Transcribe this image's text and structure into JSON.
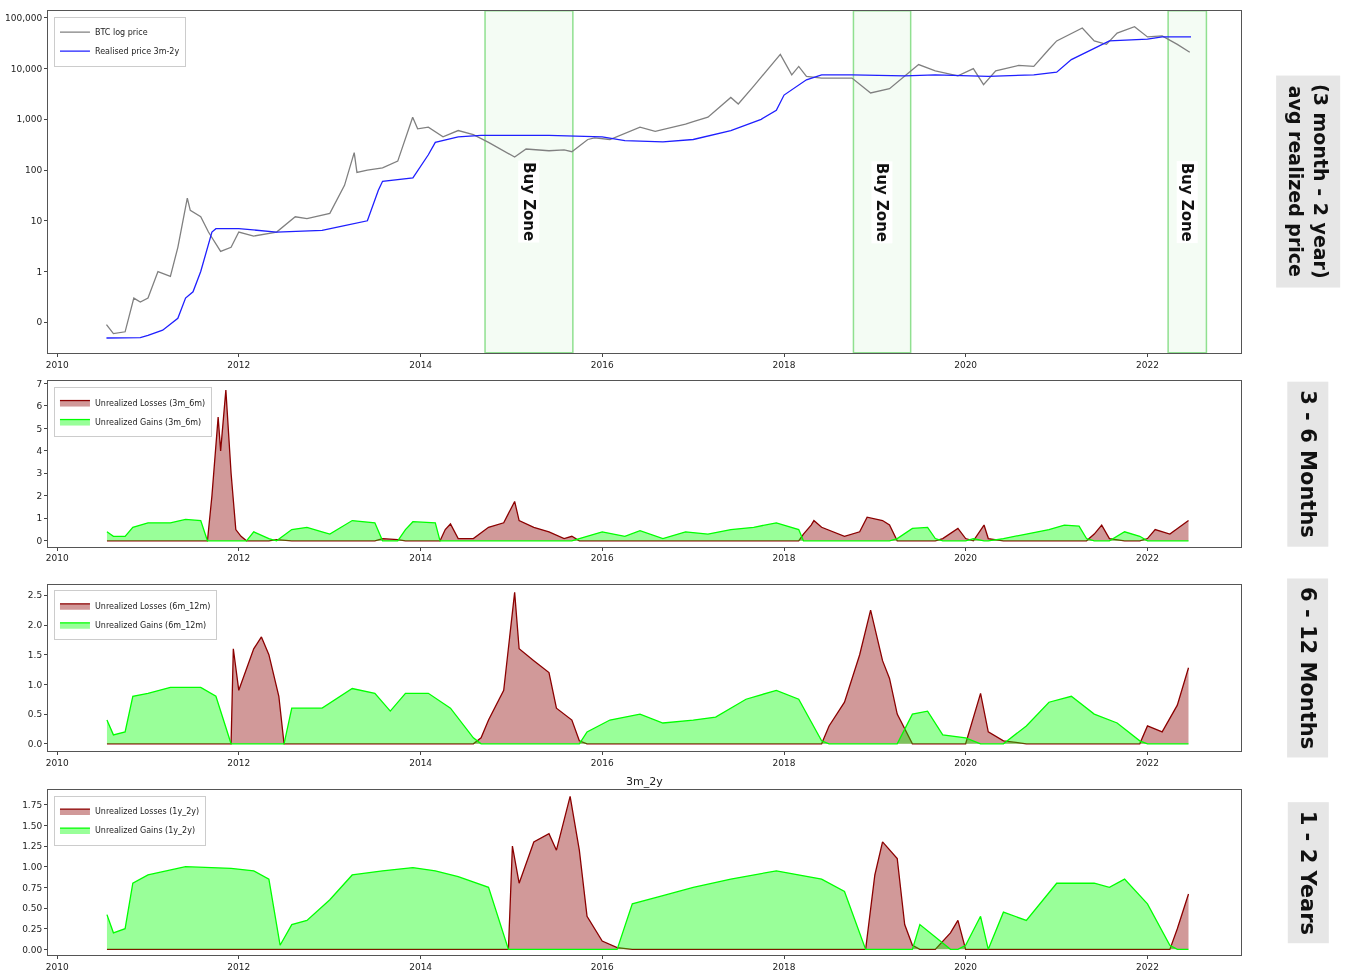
{
  "chart_data": [
    {
      "type": "line",
      "log": true,
      "legend": "top left",
      "xlim": [
        "2009-11-25",
        "2023-01-12"
      ],
      "xticks": [
        "2010",
        "2012",
        "2014",
        "2016",
        "2018",
        "2020",
        "2022"
      ],
      "ylim": [
        0.025,
        137000
      ],
      "yticks": [
        {
          "value": 0.1,
          "label": "0"
        },
        1,
        10,
        100,
        {
          "value": 1000,
          "label": "1,000"
        },
        {
          "value": 10000,
          "label": "10,000"
        },
        {
          "value": 100000,
          "label": "100,000"
        }
      ],
      "series": [
        {
          "name": "BTC log price",
          "color": "#808080",
          "x": [
            "2010-07-18",
            "2010-08-15",
            "2010-10-01",
            "2010-11-05",
            "2010-12-01",
            "2011-01-01",
            "2011-02-10",
            "2011-04-01",
            "2011-05-01",
            "2011-06-08",
            "2011-06-20",
            "2011-08-01",
            "2011-09-01",
            "2011-10-20",
            "2011-12-01",
            "2012-01-01",
            "2012-03-01",
            "2012-06-01",
            "2012-08-15",
            "2012-10-01",
            "2013-01-01",
            "2013-03-01",
            "2013-04-09",
            "2013-04-20",
            "2013-06-01",
            "2013-08-01",
            "2013-10-01",
            "2013-11-30",
            "2013-12-20",
            "2014-02-01",
            "2014-04-01",
            "2014-06-01",
            "2014-08-01",
            "2014-10-01",
            "2015-01-14",
            "2015-03-01",
            "2015-06-01",
            "2015-08-01",
            "2015-09-01",
            "2015-11-04",
            "2015-12-01",
            "2016-02-01",
            "2016-06-01",
            "2016-08-01",
            "2016-12-01",
            "2017-01-01",
            "2017-03-01",
            "2017-06-01",
            "2017-07-01",
            "2017-09-01",
            "2017-12-17",
            "2018-02-01",
            "2018-03-01",
            "2018-04-01",
            "2018-06-01",
            "2018-08-01",
            "2018-10-01",
            "2018-12-15",
            "2019-03-01",
            "2019-06-26",
            "2019-09-01",
            "2019-12-01",
            "2020-02-01",
            "2020-03-13",
            "2020-05-01",
            "2020-08-01",
            "2020-10-01",
            "2020-12-01",
            "2021-01-01",
            "2021-04-14",
            "2021-06-01",
            "2021-07-20",
            "2021-09-01",
            "2021-11-10",
            "2022-01-01",
            "2022-03-01",
            "2022-05-01",
            "2022-06-20"
          ],
          "values": [
            0.09,
            0.06,
            0.065,
            0.3,
            0.25,
            0.3,
            1.0,
            0.8,
            3,
            28,
            16,
            12,
            6,
            2.5,
            3,
            6,
            5,
            6,
            12,
            11,
            14,
            50,
            220,
            90,
            100,
            110,
            150,
            1100,
            650,
            700,
            450,
            600,
            500,
            350,
            180,
            260,
            240,
            250,
            230,
            400,
            430,
            400,
            700,
            580,
            800,
            900,
            1100,
            2700,
            2000,
            4500,
            19000,
            7500,
            11000,
            7000,
            6500,
            6500,
            6500,
            3300,
            4000,
            12000,
            9000,
            7200,
            10000,
            4800,
            9000,
            11500,
            11000,
            24000,
            35000,
            63000,
            35000,
            30000,
            50000,
            67000,
            42000,
            44000,
            30000,
            21000
          ]
        },
        {
          "name": "Realised price 3m-2y",
          "color": "#1f1fff",
          "x": [
            "2010-07-18",
            "2010-12-01",
            "2011-01-01",
            "2011-03-01",
            "2011-05-01",
            "2011-06-01",
            "2011-07-01",
            "2011-08-01",
            "2011-09-15",
            "2011-10-01",
            "2012-01-01",
            "2012-06-01",
            "2012-12-01",
            "2013-03-01",
            "2013-06-01",
            "2013-07-15",
            "2013-08-01",
            "2013-12-01",
            "2014-02-01",
            "2014-03-01",
            "2014-06-01",
            "2014-09-01",
            "2015-06-01",
            "2016-01-01",
            "2016-04-01",
            "2016-09-01",
            "2017-01-01",
            "2017-06-01",
            "2017-10-01",
            "2017-12-01",
            "2018-01-01",
            "2018-04-01",
            "2018-06-01",
            "2018-10-01",
            "2019-05-01",
            "2019-09-01",
            "2020-04-01",
            "2020-10-01",
            "2021-01-01",
            "2021-03-01",
            "2021-06-01",
            "2021-08-01",
            "2022-01-01",
            "2022-03-01",
            "2022-06-25"
          ],
          "values": [
            0.049,
            0.05,
            0.055,
            0.07,
            0.12,
            0.3,
            0.4,
            1,
            6,
            7,
            7,
            6,
            6.5,
            8,
            10,
            40,
            60,
            70,
            200,
            350,
            450,
            480,
            480,
            450,
            380,
            360,
            400,
            600,
            1000,
            1500,
            3000,
            6000,
            7500,
            7500,
            7200,
            7500,
            7000,
            7500,
            8500,
            15000,
            25000,
            35000,
            38000,
            42000,
            42000
          ]
        }
      ],
      "bands": [
        {
          "axis": "x",
          "from": "2014-09-17",
          "to": "2015-09-05",
          "label": "Buy Zone",
          "color": "#90e090"
        },
        {
          "axis": "x",
          "from": "2018-10-07",
          "to": "2019-05-25",
          "label": "Buy Zone",
          "color": "#90e090"
        },
        {
          "axis": "x",
          "from": "2022-03-25",
          "to": "2022-08-26",
          "label": "Buy Zone",
          "color": "#90e090"
        }
      ],
      "annotations": [
        "(3 month - 2 year)\navg realized price"
      ]
    },
    {
      "type": "area",
      "legend": "top left",
      "xlim": [
        "2009-11-25",
        "2023-01-12"
      ],
      "xticks": [
        "2010",
        "2012",
        "2014",
        "2016",
        "2018",
        "2020",
        "2022"
      ],
      "ylim": [
        -0.26,
        7.09
      ],
      "yticks": [
        0,
        1,
        2,
        3,
        4,
        5,
        6,
        7
      ],
      "x": [
        "2010-07-20",
        "2010-08-15",
        "2010-10-01",
        "2010-11-01",
        "2011-01-01",
        "2011-04-01",
        "2011-06-01",
        "2011-08-01",
        "2011-08-28",
        "2011-09-15",
        "2011-10-10",
        "2011-10-20",
        "2011-11-10",
        "2011-12-01",
        "2011-12-20",
        "2012-01-10",
        "2012-02-01",
        "2012-03-01",
        "2012-05-01",
        "2012-06-01",
        "2012-08-01",
        "2012-10-01",
        "2012-12-01",
        "2013-01-01",
        "2013-04-01",
        "2013-07-01",
        "2013-08-01",
        "2013-10-01",
        "2013-11-01",
        "2013-12-01",
        "2014-03-01",
        "2014-03-20",
        "2014-04-10",
        "2014-05-01",
        "2014-06-01",
        "2014-08-01",
        "2014-10-01",
        "2014-12-01",
        "2015-01-14",
        "2015-02-01",
        "2015-04-01",
        "2015-06-01",
        "2015-08-01",
        "2015-09-01",
        "2015-10-01",
        "2016-01-01",
        "2016-04-01",
        "2016-06-01",
        "2016-09-01",
        "2016-12-01",
        "2017-03-01",
        "2017-06-01",
        "2017-09-01",
        "2017-12-01",
        "2018-03-01",
        "2018-03-20",
        "2018-04-20",
        "2018-05-01",
        "2018-06-01",
        "2018-09-01",
        "2018-11-01",
        "2018-12-01",
        "2019-02-01",
        "2019-03-01",
        "2019-04-01",
        "2019-06-01",
        "2019-08-01",
        "2019-09-01",
        "2019-10-01",
        "2019-12-01",
        "2020-01-01",
        "2020-02-01",
        "2020-03-15",
        "2020-04-01",
        "2020-06-01",
        "2020-09-01",
        "2020-12-01",
        "2021-02-01",
        "2021-04-01",
        "2021-05-01",
        "2021-06-01",
        "2021-07-01",
        "2021-08-01",
        "2021-10-01",
        "2021-12-01",
        "2022-01-01",
        "2022-02-01",
        "2022-04-01",
        "2022-06-15"
      ],
      "series": [
        {
          "name": "Unrealized Losses (3m_6m)",
          "color": "#8b0000",
          "values": [
            0,
            0,
            0,
            0,
            0,
            0,
            0,
            0,
            0,
            2,
            5.5,
            4,
            6.7,
            3,
            0.5,
            0.2,
            0,
            0,
            0,
            0.05,
            0,
            0,
            0,
            0,
            0,
            0,
            0.1,
            0.05,
            0,
            0,
            0,
            0,
            0.5,
            0.75,
            0.1,
            0.1,
            0.6,
            0.8,
            1.75,
            0.9,
            0.6,
            0.4,
            0.1,
            0.2,
            0,
            0,
            0,
            0,
            0,
            0,
            0,
            0,
            0,
            0,
            0,
            0.3,
            0.7,
            0.9,
            0.6,
            0.2,
            0.4,
            1.05,
            0.9,
            0.7,
            0,
            0,
            0,
            0,
            0.1,
            0.55,
            0.1,
            0,
            0.7,
            0.1,
            0,
            0,
            0,
            0,
            0,
            0,
            0.3,
            0.7,
            0.1,
            0,
            0,
            0.1,
            0.5,
            0.3,
            0.9
          ]
        },
        {
          "name": "Unrealized Gains (3m_6m)",
          "color": "#00ff00",
          "values": [
            0.4,
            0.2,
            0.2,
            0.6,
            0.8,
            0.8,
            0.95,
            0.9,
            0,
            0,
            0,
            0,
            0,
            0,
            0,
            0,
            0,
            0.4,
            0.1,
            0,
            0.5,
            0.6,
            0.4,
            0.3,
            0.9,
            0.8,
            0,
            0,
            0.5,
            0.85,
            0.8,
            0,
            0,
            0,
            0,
            0,
            0,
            0,
            0,
            0,
            0,
            0,
            0,
            0,
            0.1,
            0.4,
            0.2,
            0.45,
            0.1,
            0.4,
            0.3,
            0.5,
            0.6,
            0.8,
            0.5,
            0,
            0,
            0,
            0,
            0,
            0,
            0,
            0,
            0,
            0.1,
            0.55,
            0.6,
            0.1,
            0,
            0,
            0,
            0.1,
            0,
            0,
            0.1,
            0.3,
            0.5,
            0.7,
            0.65,
            0.1,
            0,
            0,
            0,
            0.4,
            0.2,
            0,
            0,
            0,
            0
          ]
        }
      ],
      "annotations": [
        "3 - 6 Months"
      ]
    },
    {
      "type": "area",
      "legend": "top left",
      "xlim": [
        "2009-11-25",
        "2023-01-12"
      ],
      "xticks": [
        "2010",
        "2012",
        "2014",
        "2016",
        "2018",
        "2020",
        "2022"
      ],
      "ylim": [
        -0.12,
        2.68
      ],
      "yticks": [
        {
          "value": 0,
          "label": "0.0"
        },
        0.5,
        {
          "value": 1,
          "label": "1.0"
        },
        1.5,
        {
          "value": 2,
          "label": "2.0"
        },
        2.5
      ],
      "x": [
        "2010-07-20",
        "2010-08-15",
        "2010-10-01",
        "2010-11-01",
        "2011-01-01",
        "2011-04-01",
        "2011-08-01",
        "2011-10-01",
        "2011-12-01",
        "2011-12-10",
        "2012-01-01",
        "2012-03-01",
        "2012-04-01",
        "2012-05-01",
        "2012-06-10",
        "2012-07-01",
        "2012-08-01",
        "2012-10-01",
        "2012-12-01",
        "2013-04-01",
        "2013-07-01",
        "2013-09-01",
        "2013-11-01",
        "2014-02-01",
        "2014-05-01",
        "2014-08-01",
        "2014-09-01",
        "2014-10-01",
        "2014-12-01",
        "2015-01-14",
        "2015-02-01",
        "2015-04-01",
        "2015-06-01",
        "2015-07-01",
        "2015-09-01",
        "2015-10-01",
        "2015-11-01",
        "2016-02-01",
        "2016-06-01",
        "2016-09-01",
        "2017-01-01",
        "2017-04-01",
        "2017-08-01",
        "2017-12-01",
        "2018-03-01",
        "2018-06-01",
        "2018-07-01",
        "2018-09-01",
        "2018-11-01",
        "2018-12-15",
        "2019-02-01",
        "2019-03-01",
        "2019-04-01",
        "2019-06-01",
        "2019-08-01",
        "2019-10-01",
        "2020-01-01",
        "2020-03-01",
        "2020-04-01",
        "2020-06-01",
        "2020-09-01",
        "2020-12-01",
        "2021-03-01",
        "2021-06-01",
        "2021-09-01",
        "2021-12-01",
        "2022-01-01",
        "2022-03-01",
        "2022-05-01",
        "2022-06-15"
      ],
      "series": [
        {
          "name": "Unrealized Losses (6m_12m)",
          "color": "#8b0000",
          "values": [
            0,
            0,
            0,
            0,
            0,
            0,
            0,
            0,
            0,
            1.6,
            0.9,
            1.6,
            1.8,
            1.5,
            0.8,
            0,
            0,
            0,
            0,
            0,
            0,
            0,
            0,
            0,
            0,
            0,
            0.1,
            0.4,
            0.9,
            2.55,
            1.6,
            1.4,
            1.2,
            0.6,
            0.4,
            0.05,
            0,
            0,
            0,
            0,
            0,
            0,
            0,
            0,
            0,
            0,
            0.3,
            0.7,
            1.5,
            2.25,
            1.4,
            1.1,
            0.5,
            0,
            0,
            0,
            0,
            0.85,
            0.2,
            0.05,
            0,
            0,
            0,
            0,
            0,
            0,
            0.3,
            0.2,
            0.65,
            1.28
          ]
        },
        {
          "name": "Unrealized Gains (6m_12m)",
          "color": "#00ff00",
          "values": [
            0.4,
            0.15,
            0.2,
            0.8,
            0.85,
            0.95,
            0.95,
            0.8,
            0,
            0,
            0,
            0,
            0,
            0,
            0,
            0,
            0.6,
            0.6,
            0.6,
            0.93,
            0.85,
            0.55,
            0.85,
            0.85,
            0.6,
            0.1,
            0,
            0,
            0,
            0,
            0,
            0,
            0,
            0,
            0,
            0,
            0.2,
            0.4,
            0.5,
            0.35,
            0.4,
            0.45,
            0.75,
            0.9,
            0.75,
            0.05,
            0,
            0,
            0,
            0,
            0,
            0,
            0,
            0.5,
            0.55,
            0.15,
            0.1,
            0,
            0,
            0,
            0.3,
            0.7,
            0.8,
            0.5,
            0.35,
            0.05,
            0,
            0,
            0,
            0
          ]
        }
      ],
      "annotations": [
        "6 - 12 Months"
      ]
    },
    {
      "type": "area",
      "title": "3m_2y",
      "legend": "top left",
      "xlim": [
        "2009-11-25",
        "2023-01-12"
      ],
      "xticks": [
        "2010",
        "2012",
        "2014",
        "2016",
        "2018",
        "2020",
        "2022"
      ],
      "ylim": [
        -0.07,
        1.93
      ],
      "yticks": [
        {
          "value": 0,
          "label": "0.00"
        },
        0.25,
        {
          "value": 0.5,
          "label": "0.50"
        },
        0.75,
        {
          "value": 1,
          "label": "1.00"
        },
        1.25,
        {
          "value": 1.5,
          "label": "1.50"
        },
        1.75
      ],
      "x": [
        "2010-07-20",
        "2010-08-15",
        "2010-10-01",
        "2010-11-01",
        "2011-01-01",
        "2011-06-01",
        "2011-12-01",
        "2012-03-01",
        "2012-05-01",
        "2012-06-15",
        "2012-08-01",
        "2012-10-01",
        "2013-01-01",
        "2013-04-01",
        "2013-08-01",
        "2013-12-01",
        "2014-03-01",
        "2014-06-01",
        "2014-10-01",
        "2014-12-20",
        "2015-01-05",
        "2015-02-01",
        "2015-04-01",
        "2015-06-01",
        "2015-07-01",
        "2015-08-25",
        "2015-10-01",
        "2015-11-01",
        "2016-01-01",
        "2016-03-01",
        "2016-05-01",
        "2016-09-01",
        "2017-01-01",
        "2017-06-01",
        "2017-12-01",
        "2018-06-01",
        "2018-09-01",
        "2018-11-25",
        "2019-01-01",
        "2019-02-01",
        "2019-04-01",
        "2019-05-01",
        "2019-06-01",
        "2019-07-01",
        "2019-09-01",
        "2019-11-01",
        "2019-12-01",
        "2020-01-01",
        "2020-03-01",
        "2020-04-01",
        "2020-06-01",
        "2020-09-01",
        "2021-01-01",
        "2021-06-01",
        "2021-08-01",
        "2021-10-01",
        "2022-01-01",
        "2022-04-01",
        "2022-05-01",
        "2022-06-15"
      ],
      "series": [
        {
          "name": "Unrealized Losses (1y_2y)",
          "color": "#8b0000",
          "values": [
            0,
            0,
            0,
            0,
            0,
            0,
            0,
            0,
            0,
            0,
            0,
            0,
            0,
            0,
            0,
            0,
            0,
            0,
            0,
            0,
            1.25,
            0.8,
            1.3,
            1.4,
            1.2,
            1.85,
            1.2,
            0.4,
            0.1,
            0.02,
            0,
            0,
            0,
            0,
            0,
            0,
            0,
            0,
            0.9,
            1.3,
            1.1,
            0.3,
            0.05,
            0,
            0,
            0.2,
            0.35,
            0,
            0,
            0,
            0,
            0,
            0,
            0,
            0,
            0,
            0,
            0,
            0.25,
            0.67
          ]
        },
        {
          "name": "Unrealized Gains (1y_2y)",
          "color": "#00ff00",
          "values": [
            0.42,
            0.2,
            0.25,
            0.8,
            0.9,
            1.0,
            0.98,
            0.95,
            0.85,
            0.05,
            0.3,
            0.35,
            0.6,
            0.9,
            0.95,
            0.99,
            0.95,
            0.88,
            0.75,
            0,
            0,
            0,
            0,
            0,
            0,
            0,
            0,
            0,
            0,
            0,
            0.55,
            0.65,
            0.75,
            0.85,
            0.95,
            0.85,
            0.7,
            0,
            0,
            0,
            0,
            0,
            0,
            0.3,
            0.15,
            0,
            0,
            0.05,
            0.4,
            0,
            0.45,
            0.35,
            0.8,
            0.8,
            0.75,
            0.85,
            0.55,
            0.05,
            0,
            0
          ]
        }
      ],
      "annotations": [
        "1 - 2 Years"
      ]
    }
  ]
}
